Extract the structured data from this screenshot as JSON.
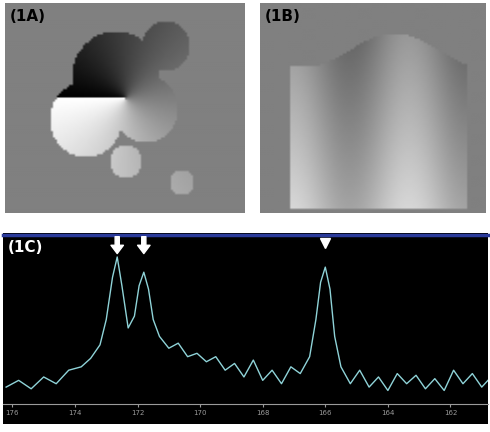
{
  "images": [
    {
      "label": "(1A)"
    },
    {
      "label": "(1B)"
    }
  ],
  "chart_data": {
    "type": "line",
    "label": "(1C)",
    "x": [
      176.2,
      175.8,
      175.4,
      175.0,
      174.6,
      174.2,
      173.8,
      173.5,
      173.2,
      173.0,
      172.8,
      172.65,
      172.5,
      172.3,
      172.1,
      171.95,
      171.8,
      171.65,
      171.5,
      171.3,
      171.0,
      170.7,
      170.4,
      170.1,
      169.8,
      169.5,
      169.2,
      168.9,
      168.6,
      168.3,
      168.0,
      167.7,
      167.4,
      167.1,
      166.8,
      166.5,
      166.3,
      166.15,
      166.0,
      165.85,
      165.7,
      165.5,
      165.2,
      164.9,
      164.6,
      164.3,
      164.0,
      163.7,
      163.4,
      163.1,
      162.8,
      162.5,
      162.2,
      161.9,
      161.6,
      161.3,
      161.0,
      160.8
    ],
    "values": [
      10,
      14,
      9,
      16,
      12,
      20,
      22,
      27,
      35,
      50,
      75,
      87,
      70,
      45,
      52,
      70,
      78,
      68,
      50,
      40,
      33,
      36,
      28,
      30,
      25,
      28,
      20,
      24,
      16,
      26,
      14,
      20,
      12,
      22,
      18,
      28,
      50,
      72,
      81,
      68,
      40,
      22,
      12,
      20,
      10,
      16,
      8,
      18,
      12,
      17,
      9,
      15,
      8,
      20,
      12,
      18,
      10,
      14
    ],
    "color": "#8fd3d8",
    "xlim": [
      176.3,
      160.8
    ],
    "xticks": [
      176,
      174,
      172,
      170,
      168,
      166,
      164,
      162
    ],
    "ylim": [
      0,
      100
    ],
    "tick_labels": "x",
    "peak_marks": [
      {
        "x": 172.65,
        "marker": "arrow"
      },
      {
        "x": 171.8,
        "marker": "arrow"
      },
      {
        "x": 166.0,
        "marker": "triangle"
      }
    ]
  }
}
